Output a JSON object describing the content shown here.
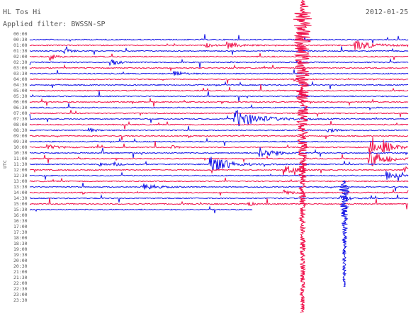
{
  "header": {
    "station": "HL Tos Hi",
    "date": "2012-01-25",
    "filter": "Applied filter: BWSSN-SP"
  },
  "axis_label": "UTC",
  "time_labels": [
    "00:00",
    "00:30",
    "01:00",
    "01:30",
    "02:00",
    "02:30",
    "03:00",
    "03:30",
    "04:00",
    "04:30",
    "05:00",
    "05:30",
    "06:00",
    "06:30",
    "07:00",
    "07:30",
    "08:00",
    "08:30",
    "09:00",
    "09:30",
    "10:00",
    "10:30",
    "11:00",
    "11:30",
    "12:00",
    "12:30",
    "13:00",
    "13:30",
    "14:00",
    "14:30",
    "15:00",
    "15:30",
    "16:00",
    "16:30",
    "17:00",
    "17:30",
    "18:00",
    "18:30",
    "19:00",
    "19:30",
    "20:00",
    "20:30",
    "21:00",
    "21:30",
    "22:00",
    "22:30",
    "23:00",
    "23:30"
  ]
}
